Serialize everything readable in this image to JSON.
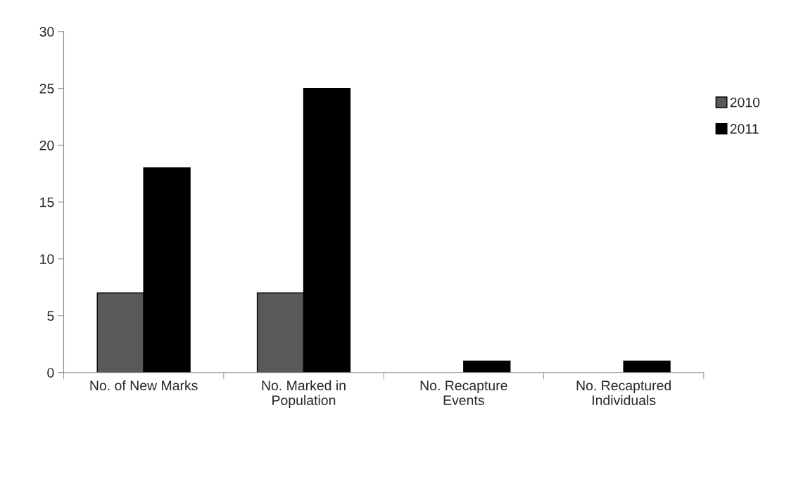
{
  "chart_data": {
    "type": "bar",
    "categories": [
      "No. of New Marks",
      "No. Marked in\nPopulation",
      "No. Recapture\nEvents",
      "No. Recaptured\nIndividuals"
    ],
    "series": [
      {
        "name": "2010",
        "color": "#595959",
        "values": [
          7,
          7,
          0,
          0
        ]
      },
      {
        "name": "2011",
        "color": "#000000",
        "values": [
          18,
          25,
          1,
          1
        ]
      }
    ],
    "ylim": [
      0,
      30
    ],
    "yticks": [
      0,
      5,
      10,
      15,
      20,
      25,
      30
    ],
    "grid": false,
    "legend": "right"
  }
}
